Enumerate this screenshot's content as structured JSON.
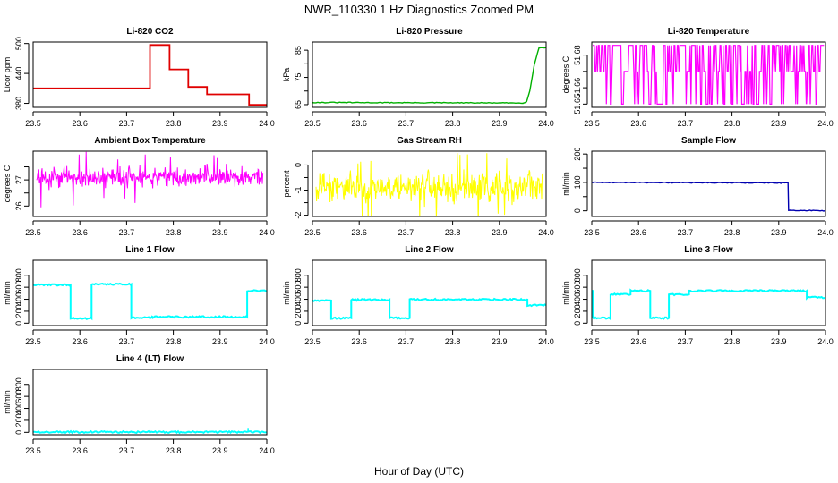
{
  "figure": {
    "title": "NWR_110330  1 Hz Diagnostics Zoomed PM",
    "xlabel": "Hour of Day (UTC)"
  },
  "colors": {
    "red": "#e00000",
    "green": "#00b000",
    "magenta": "#ff00ff",
    "yellow": "#ffff00",
    "blue": "#0000b0",
    "cyan": "#00ffff"
  },
  "chart_data": [
    {
      "type": "line",
      "title": "Li-820 CO2",
      "ylabel": "Licor ppm",
      "color": "red",
      "xlim": [
        23.5,
        24.0
      ],
      "ylim": [
        372,
        503
      ],
      "xticks": [
        "23.5",
        "23.6",
        "23.7",
        "23.8",
        "23.9",
        "24.0"
      ],
      "yticks": [
        380,
        440,
        500
      ],
      "yticks_shown": [
        380,
        440,
        500
      ],
      "segments": [
        {
          "x0": 23.5,
          "x1": 23.75,
          "y": 410
        },
        {
          "x0": 23.75,
          "x1": 23.792,
          "y": 497
        },
        {
          "x0": 23.792,
          "x1": 23.832,
          "y": 448
        },
        {
          "x0": 23.832,
          "x1": 23.872,
          "y": 413
        },
        {
          "x0": 23.872,
          "x1": 23.962,
          "y": 398
        },
        {
          "x0": 23.962,
          "x1": 24.0,
          "y": 377
        }
      ]
    },
    {
      "type": "line",
      "title": "Li-820 Pressure",
      "ylabel": "kPa",
      "color": "green",
      "xlim": [
        23.5,
        24.0
      ],
      "ylim": [
        64,
        88
      ],
      "xticks": [
        "23.5",
        "23.6",
        "23.7",
        "23.8",
        "23.9",
        "24.0"
      ],
      "yticks": [
        65,
        70,
        75,
        80,
        85
      ],
      "yticks_shown": [
        65,
        75,
        85
      ],
      "points": [
        [
          23.5,
          65.8
        ],
        [
          23.95,
          65.6
        ],
        [
          23.958,
          66.0
        ],
        [
          23.965,
          70.0
        ],
        [
          23.975,
          80.0
        ],
        [
          23.985,
          85.9
        ],
        [
          24.0,
          86.0
        ]
      ]
    },
    {
      "type": "line",
      "title": "Li-820 Temperature",
      "ylabel": "degrees C",
      "color": "magenta",
      "xlim": [
        23.5,
        24.0
      ],
      "ylim": [
        51.648,
        51.688
      ],
      "xticks": [
        "23.5",
        "23.6",
        "23.7",
        "23.8",
        "23.9",
        "24.0"
      ],
      "yticks": [
        51.65,
        51.66,
        51.67,
        51.68
      ],
      "yticks_shown": [
        51.65,
        51.66,
        51.68
      ],
      "levels": [
        51.65,
        51.67,
        51.686
      ]
    },
    {
      "type": "line",
      "title": "Ambient Box Temperature",
      "ylabel": "degrees C",
      "color": "magenta",
      "xlim": [
        23.5,
        24.0
      ],
      "ylim": [
        25.6,
        28.1
      ],
      "xticks": [
        "23.5",
        "23.6",
        "23.7",
        "23.8",
        "23.9",
        "24.0"
      ],
      "yticks": [
        26.0,
        26.5,
        27.0,
        27.5
      ],
      "yticks_shown": [
        26.0,
        27.0
      ],
      "mean": 27.1,
      "spread": 0.35
    },
    {
      "type": "line",
      "title": "Gas Stream RH",
      "ylabel": "percent",
      "color": "yellow",
      "xlim": [
        23.5,
        24.0
      ],
      "ylim": [
        -2.05,
        0.55
      ],
      "xticks": [
        "23.5",
        "23.6",
        "23.7",
        "23.8",
        "23.9",
        "24.0"
      ],
      "yticks": [
        -2.0,
        -1.5,
        -1.0,
        -0.5,
        0.0
      ],
      "yticks_shown": [
        -2.0,
        -1.0,
        0.0
      ],
      "mean": -0.9,
      "spread": 0.5
    },
    {
      "type": "line",
      "title": "Sample Flow",
      "ylabel": "ml/min",
      "color": "blue",
      "xlim": [
        23.5,
        24.0
      ],
      "ylim": [
        -20,
        210
      ],
      "xticks": [
        "23.5",
        "23.6",
        "23.7",
        "23.8",
        "23.9",
        "24.0"
      ],
      "yticks": [
        0,
        50,
        100,
        150,
        200
      ],
      "yticks_shown": [
        0,
        100,
        200
      ],
      "points": [
        [
          23.5,
          100
        ],
        [
          23.92,
          98
        ],
        [
          23.921,
          2
        ],
        [
          24.0,
          0
        ]
      ]
    },
    {
      "type": "line",
      "title": "Line 1 Flow",
      "ylabel": "ml/min",
      "color": "cyan",
      "xlim": [
        23.5,
        24.0
      ],
      "ylim": [
        -40,
        1050
      ],
      "xticks": [
        "23.5",
        "23.6",
        "23.7",
        "23.8",
        "23.9",
        "24.0"
      ],
      "yticks": [
        0,
        200,
        400,
        600,
        800
      ],
      "yticks_shown": [
        0,
        200,
        400,
        600,
        800
      ],
      "segments": [
        {
          "x0": 23.5,
          "x1": 23.58,
          "y": 640
        },
        {
          "x0": 23.58,
          "x1": 23.625,
          "y": 80
        },
        {
          "x0": 23.625,
          "x1": 23.71,
          "y": 650
        },
        {
          "x0": 23.71,
          "x1": 23.755,
          "y": 90
        },
        {
          "x0": 23.755,
          "x1": 23.958,
          "y": 105
        },
        {
          "x0": 23.958,
          "x1": 24.0,
          "y": 540
        }
      ]
    },
    {
      "type": "line",
      "title": "Line 2 Flow",
      "ylabel": "ml/min",
      "color": "cyan",
      "xlim": [
        23.5,
        24.0
      ],
      "ylim": [
        -40,
        1050
      ],
      "xticks": [
        "23.5",
        "23.6",
        "23.7",
        "23.8",
        "23.9",
        "24.0"
      ],
      "yticks": [
        0,
        200,
        400,
        600,
        800
      ],
      "yticks_shown": [
        0,
        200,
        400,
        600,
        800
      ],
      "segments": [
        {
          "x0": 23.5,
          "x1": 23.54,
          "y": 380
        },
        {
          "x0": 23.54,
          "x1": 23.583,
          "y": 85
        },
        {
          "x0": 23.583,
          "x1": 23.665,
          "y": 390
        },
        {
          "x0": 23.665,
          "x1": 23.708,
          "y": 85
        },
        {
          "x0": 23.708,
          "x1": 23.96,
          "y": 395
        },
        {
          "x0": 23.96,
          "x1": 24.0,
          "y": 300
        }
      ]
    },
    {
      "type": "line",
      "title": "Line 3 Flow",
      "ylabel": "ml/min",
      "color": "cyan",
      "xlim": [
        23.5,
        24.0
      ],
      "ylim": [
        -40,
        1050
      ],
      "xticks": [
        "23.5",
        "23.6",
        "23.7",
        "23.8",
        "23.9",
        "24.0"
      ],
      "yticks": [
        0,
        200,
        400,
        600,
        800
      ],
      "yticks_shown": [
        0,
        200,
        400,
        600,
        800
      ],
      "segments": [
        {
          "x0": 23.5,
          "x1": 23.502,
          "y": 540
        },
        {
          "x0": 23.502,
          "x1": 23.54,
          "y": 85
        },
        {
          "x0": 23.54,
          "x1": 23.583,
          "y": 480
        },
        {
          "x0": 23.583,
          "x1": 23.625,
          "y": 540
        },
        {
          "x0": 23.625,
          "x1": 23.665,
          "y": 85
        },
        {
          "x0": 23.665,
          "x1": 23.708,
          "y": 480
        },
        {
          "x0": 23.708,
          "x1": 23.96,
          "y": 540
        },
        {
          "x0": 23.96,
          "x1": 24.0,
          "y": 430
        }
      ]
    },
    {
      "type": "line",
      "title": "Line 4 (LT) Flow",
      "ylabel": "ml/min",
      "color": "cyan",
      "xlim": [
        23.5,
        24.0
      ],
      "ylim": [
        -40,
        1050
      ],
      "xticks": [
        "23.5",
        "23.6",
        "23.7",
        "23.8",
        "23.9",
        "24.0"
      ],
      "yticks": [
        0,
        200,
        400,
        600,
        800
      ],
      "yticks_shown": [
        0,
        200,
        400,
        600,
        800
      ],
      "segments": [
        {
          "x0": 23.5,
          "x1": 24.0,
          "y": 5
        }
      ],
      "spike": {
        "x": 23.96,
        "y": 60
      }
    }
  ]
}
